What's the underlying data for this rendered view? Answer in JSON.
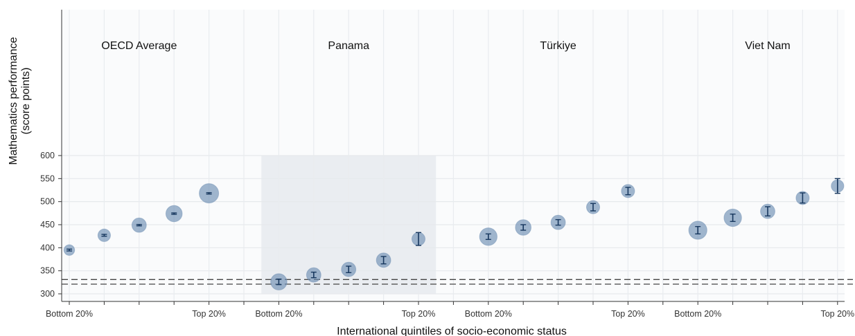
{
  "chart_data": {
    "type": "scatter",
    "ylabel_line1": "Mathematics performance",
    "ylabel_line2": "(score points)",
    "xlabel": "International quintiles of socio-economic status",
    "ylim": [
      300,
      600
    ],
    "yticks": [
      "300",
      "350",
      "400",
      "450",
      "500",
      "550",
      "600"
    ],
    "xtick_bottom": "Bottom 20%",
    "xtick_top": "Top 20%",
    "grid": true,
    "highlighted_group": "Panama",
    "colors": {
      "point": "#6f8fb3",
      "error": "#17375e",
      "highlight": "#dfe4ea",
      "reference_line": "#444444"
    },
    "reference_lines": [
      331,
      321
    ],
    "groups": [
      {
        "name": "OECD Average",
        "values": [
          395,
          427,
          449,
          474,
          518
        ],
        "errors": [
          2,
          2,
          1.5,
          1.5,
          1.5
        ],
        "sizes": [
          0.3,
          0.45,
          0.6,
          0.75,
          1.0
        ]
      },
      {
        "name": "Panama",
        "values": [
          326,
          341,
          353,
          373,
          419
        ],
        "errors": [
          6,
          6,
          7,
          8,
          14
        ],
        "sizes": [
          0.75,
          0.6,
          0.6,
          0.6,
          0.5
        ]
      },
      {
        "name": "Türkiye",
        "values": [
          424,
          444,
          455,
          488,
          523
        ],
        "errors": [
          6,
          6,
          6,
          8,
          8
        ],
        "sizes": [
          0.85,
          0.7,
          0.6,
          0.5,
          0.5
        ]
      },
      {
        "name": "Viet Nam",
        "values": [
          438,
          465,
          479,
          508,
          534
        ],
        "errors": [
          8,
          8,
          10,
          11,
          16
        ],
        "sizes": [
          0.9,
          0.85,
          0.6,
          0.5,
          0.45
        ]
      }
    ]
  }
}
